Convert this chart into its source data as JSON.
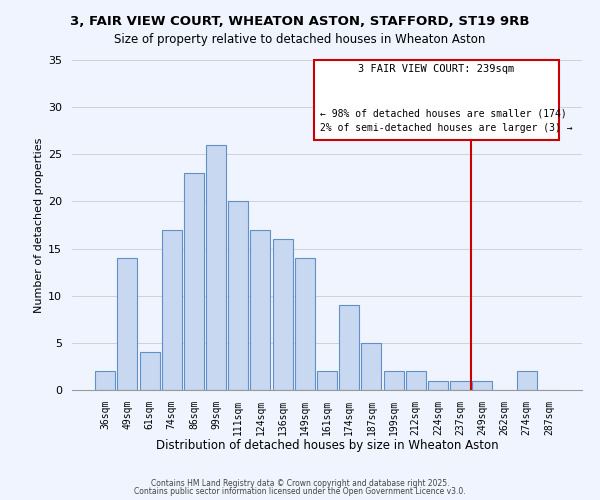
{
  "title_line1": "3, FAIR VIEW COURT, WHEATON ASTON, STAFFORD, ST19 9RB",
  "title_line2": "Size of property relative to detached houses in Wheaton Aston",
  "xlabel": "Distribution of detached houses by size in Wheaton Aston",
  "ylabel": "Number of detached properties",
  "bar_labels": [
    "36sqm",
    "49sqm",
    "61sqm",
    "74sqm",
    "86sqm",
    "99sqm",
    "111sqm",
    "124sqm",
    "136sqm",
    "149sqm",
    "161sqm",
    "174sqm",
    "187sqm",
    "199sqm",
    "212sqm",
    "224sqm",
    "237sqm",
    "249sqm",
    "262sqm",
    "274sqm",
    "287sqm"
  ],
  "bar_heights": [
    2,
    14,
    4,
    17,
    23,
    26,
    20,
    17,
    16,
    14,
    2,
    9,
    5,
    2,
    2,
    1,
    1,
    1,
    0,
    2,
    0
  ],
  "bar_color": "#c8d8f0",
  "bar_edgecolor": "#6090c8",
  "ylim": [
    0,
    35
  ],
  "yticks": [
    0,
    5,
    10,
    15,
    20,
    25,
    30,
    35
  ],
  "annotation_title": "3 FAIR VIEW COURT: 239sqm",
  "annotation_line1": "← 98% of detached houses are smaller (174)",
  "annotation_line2": "2% of semi-detached houses are larger (3) →",
  "annotation_color": "#cc0000",
  "grid_color": "#cccccc",
  "background_color": "#f0f4ff",
  "footer_line1": "Contains HM Land Registry data © Crown copyright and database right 2025.",
  "footer_line2": "Contains public sector information licensed under the Open Government Licence v3.0."
}
